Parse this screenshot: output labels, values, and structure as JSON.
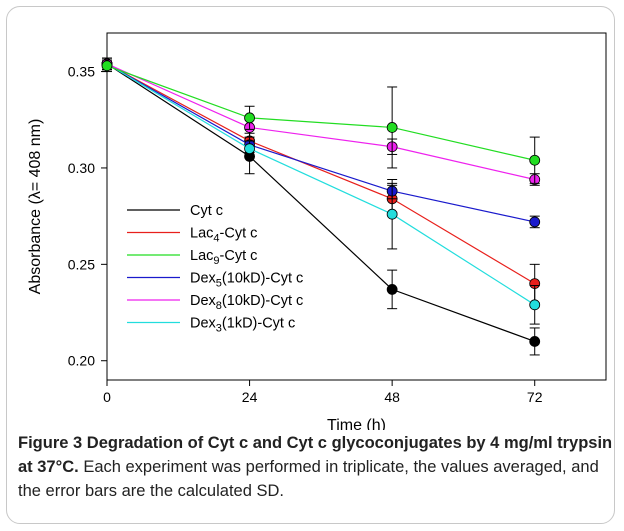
{
  "figure": {
    "label": "Figure 3",
    "title": "Degradation of Cyt c and Cyt c glycoconjugates by 4 mg/ml trypsin at 37°C.",
    "body": "Each experiment was performed in triplicate, the values averaged, and the error bars are the calculated SD."
  },
  "chart_data": {
    "type": "line",
    "xlabel": "Time (h)",
    "ylabel_parts": [
      "Absorbance (",
      "λ",
      "= 408 nm)"
    ],
    "x": [
      0,
      24,
      48,
      72
    ],
    "xticks": [
      "0",
      "24",
      "48",
      "72"
    ],
    "yticks": [
      "0.20",
      "0.25",
      "0.30",
      "0.35"
    ],
    "ytick_values": [
      0.2,
      0.25,
      0.3,
      0.35
    ],
    "xlim": [
      0,
      84
    ],
    "ylim": [
      0.19,
      0.37
    ],
    "legend_position": "lower-left",
    "series": [
      {
        "name_parts": [
          "Cyt c",
          "",
          ""
        ],
        "color": "#000000",
        "values": [
          0.354,
          0.306,
          0.237,
          0.21
        ],
        "errors": [
          0.003,
          0.009,
          0.01,
          0.007
        ]
      },
      {
        "name_parts": [
          "Lac",
          "4",
          "-Cyt c"
        ],
        "color": "#e8201c",
        "values": [
          0.354,
          0.314,
          0.284,
          0.24
        ],
        "errors": [
          0.003,
          0.006,
          0.007,
          0.01
        ]
      },
      {
        "name_parts": [
          "Lac",
          "9",
          "-Cyt c"
        ],
        "color": "#22dd22",
        "values": [
          0.353,
          0.326,
          0.321,
          0.304
        ],
        "errors": [
          0.003,
          0.006,
          0.021,
          0.012
        ]
      },
      {
        "name_parts": [
          "Dex",
          "5",
          "(10kD)-Cyt c"
        ],
        "color": "#1a1acc",
        "values": [
          0.354,
          0.312,
          0.288,
          0.272
        ],
        "errors": [
          0.003,
          0.006,
          0.004,
          0.003
        ]
      },
      {
        "name_parts": [
          "Dex",
          "8",
          "(10kD)-Cyt c"
        ],
        "color": "#ee22ee",
        "values": [
          0.354,
          0.321,
          0.311,
          0.294
        ],
        "errors": [
          0.003,
          0.005,
          0.004,
          0.003
        ]
      },
      {
        "name_parts": [
          "Dex",
          "3",
          "(1kD)-Cyt c"
        ],
        "color": "#22dddd",
        "values": [
          0.354,
          0.31,
          0.276,
          0.229
        ],
        "errors": [
          0.003,
          0.004,
          0.018,
          0.01
        ]
      }
    ]
  }
}
